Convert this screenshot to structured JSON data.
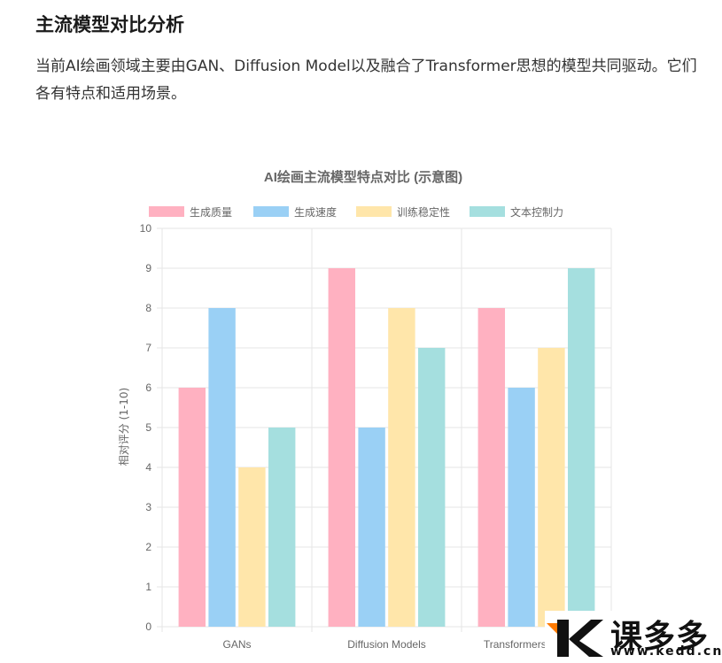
{
  "section": {
    "title": "主流模型对比分析",
    "intro": "当前AI绘画领域主要由GAN、Diffusion Model以及融合了Transformer思想的模型共同驱动。它们各有特点和适用场景。"
  },
  "chart_data": {
    "type": "bar",
    "title": "AI绘画主流模型特点对比 (示意图)",
    "xlabel": "",
    "ylabel": "相对评分 (1-10)",
    "categories": [
      "GANs",
      "Diffusion Models",
      "Transformers in Vision"
    ],
    "ylim": [
      0,
      10
    ],
    "yticks": [
      "0",
      "1",
      "2",
      "3",
      "4",
      "5",
      "6",
      "7",
      "8",
      "9",
      "10"
    ],
    "grid": true,
    "legend": "top",
    "series": [
      {
        "name": "生成质量",
        "values": [
          6,
          9,
          8
        ],
        "color": "#ffb1c1",
        "border": "#ff6384"
      },
      {
        "name": "生成速度",
        "values": [
          8,
          5,
          6
        ],
        "color": "#9ad0f5",
        "border": "#36a2eb"
      },
      {
        "name": "训练稳定性",
        "values": [
          4,
          8,
          7
        ],
        "color": "#ffe6aa",
        "border": "#ffcd56"
      },
      {
        "name": "文本控制力",
        "values": [
          5,
          7,
          9
        ],
        "color": "#a5dfdf",
        "border": "#4bc0c0"
      }
    ]
  },
  "watermark": {
    "text": "课多多",
    "url": "www.kedd.cn"
  }
}
